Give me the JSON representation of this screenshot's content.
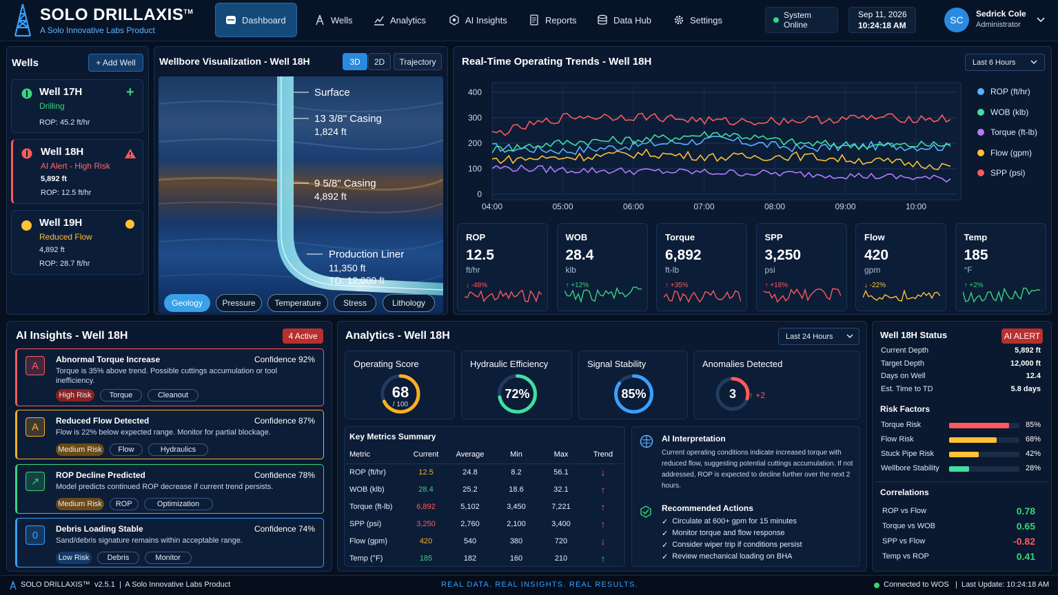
{
  "header": {
    "app_title": "SOLO DRILLAXIS",
    "trademark": "TM",
    "subtitle": "A Solo Innovative Labs Product",
    "nav": [
      {
        "label": "Dashboard",
        "icon": "dashboard-icon"
      },
      {
        "label": "Wells",
        "icon": "derrick-icon"
      },
      {
        "label": "Analytics",
        "icon": "analytics-icon"
      },
      {
        "label": "AI Insights",
        "icon": "ai-icon"
      },
      {
        "label": "Reports",
        "icon": "report-icon"
      },
      {
        "label": "Data Hub",
        "icon": "database-icon"
      },
      {
        "label": "Settings",
        "icon": "gear-icon"
      }
    ],
    "system_status": "System Online",
    "date": "Sep 11, 2026",
    "time": "10:24:18 AM",
    "user_initials": "SC",
    "user_name": "Sedrick Cole",
    "user_role": "Administrator"
  },
  "wells_panel": {
    "title": "Wells",
    "add_label": "+ Add Well",
    "wells": [
      {
        "name": "Well 17H",
        "status": "Drilling",
        "depth": "",
        "rop": "ROP: 45.2 ft/hr",
        "color": "#37d67a"
      },
      {
        "name": "Well 18H",
        "status": "AI Alert - High Risk",
        "depth": "5,892 ft",
        "rop": "ROP: 12.5 ft/hr",
        "color": "#ff5a5a"
      },
      {
        "name": "Well 19H",
        "status": "Reduced Flow",
        "depth": "4,892 ft",
        "rop": "ROP: 28.7 ft/hr",
        "color": "#ffc233"
      }
    ]
  },
  "wellbore": {
    "title": "Wellbore Visualization - Well 18H",
    "view_tabs": [
      "3D",
      "2D",
      "Trajectory"
    ],
    "labels": [
      {
        "name": "Surface",
        "value": ""
      },
      {
        "name": "13 3/8\" Casing",
        "value": "1,824 ft"
      },
      {
        "name": "9 5/8\" Casing",
        "value": "4,892 ft"
      },
      {
        "name": "Production Liner",
        "value": "11,350 ft"
      }
    ],
    "td": "TD: 12,000 ft",
    "layer_tabs": [
      "Geology",
      "Pressure",
      "Temperature",
      "Stress",
      "Lithology"
    ]
  },
  "trends": {
    "title": "Real-Time Operating Trends - Well 18H",
    "range": "Last 6 Hours"
  },
  "chart_data": {
    "type": "line",
    "x": [
      "04:00",
      "05:00",
      "06:00",
      "07:00",
      "08:00",
      "09:00",
      "10:00"
    ],
    "ylim": [
      0,
      400
    ],
    "yticks": [
      0,
      100,
      200,
      300,
      400
    ],
    "grid": true,
    "legend_position": "right",
    "series": [
      {
        "name": "ROP (ft/hr)",
        "color": "#58b4ff",
        "values": [
          185,
          170,
          195,
          215,
          180,
          190,
          185
        ]
      },
      {
        "name": "WOB (klb)",
        "color": "#3fe0a0",
        "values": [
          175,
          205,
          215,
          240,
          200,
          190,
          195
        ]
      },
      {
        "name": "Torque (ft-lb)",
        "color": "#b57cff",
        "values": [
          105,
          95,
          90,
          85,
          80,
          70,
          60
        ]
      },
      {
        "name": "Flow (gpm)",
        "color": "#ffc233",
        "values": [
          135,
          145,
          160,
          145,
          150,
          130,
          110
        ]
      },
      {
        "name": "SPP (psi)",
        "color": "#ff5a5a",
        "values": [
          235,
          305,
          305,
          285,
          290,
          300,
          295
        ]
      }
    ]
  },
  "kpis": [
    {
      "label": "ROP",
      "value": "12.5",
      "unit": "ft/hr",
      "change": "↓ -48%",
      "color": "#ff5a5a"
    },
    {
      "label": "WOB",
      "value": "28.4",
      "unit": "klb",
      "change": "↑ +12%",
      "color": "#37d67a"
    },
    {
      "label": "Torque",
      "value": "6,892",
      "unit": "ft-lb",
      "change": "↑ +35%",
      "color": "#ff5a5a"
    },
    {
      "label": "SPP",
      "value": "3,250",
      "unit": "psi",
      "change": "↑ +18%",
      "color": "#ff5a5a"
    },
    {
      "label": "Flow",
      "value": "420",
      "unit": "gpm",
      "change": "↓ -22%",
      "color": "#ffc233"
    },
    {
      "label": "Temp",
      "value": "185",
      "unit": "°F",
      "change": "↑ +2%",
      "color": "#37d67a"
    }
  ],
  "insights": {
    "title": "AI Insights - Well 18H",
    "badge": "4 Active",
    "items": [
      {
        "icon_letter": "A",
        "title": "Abnormal Torque Increase",
        "confidence": "Confidence 92%",
        "desc": "Torque is 35% above trend. Possible cuttings accumulation or tool inefficiency.",
        "tags": [
          "High Risk",
          "Torque",
          "Cleanout"
        ],
        "color": "#ff5a5a"
      },
      {
        "icon_letter": "A",
        "title": "Reduced Flow Detected",
        "confidence": "Confidence 87%",
        "desc": "Flow is 22% below expected range. Monitor for partial blockage.",
        "tags": [
          "Medium Risk",
          "Flow",
          "Hydraulics"
        ],
        "color": "#ffb020"
      },
      {
        "icon_letter": "↗",
        "title": "ROP Decline Predicted",
        "confidence": "Confidence 78%",
        "desc": "Model predicts continued ROP decrease if current trend persists.",
        "tags": [
          "Medium Risk",
          "ROP",
          "Optimization"
        ],
        "color": "#37d67a"
      },
      {
        "icon_letter": "0",
        "title": "Debris Loading Stable",
        "confidence": "Confidence 74%",
        "desc": "Sand/debris signature remains within acceptable range.",
        "tags": [
          "Low Risk",
          "Debris",
          "Monitor"
        ],
        "color": "#3aa0ff"
      }
    ]
  },
  "analytics": {
    "title": "Analytics - Well 18H",
    "range": "Last 24 Hours",
    "cards": [
      {
        "label": "Operating Score",
        "value": "68",
        "sub": "/ 100",
        "fraction": 0.68,
        "color": "#ffb020"
      },
      {
        "label": "Hydraulic Efficiency",
        "value": "72%",
        "fraction": 0.72,
        "color": "#3fe0a0"
      },
      {
        "label": "Signal Stability",
        "value": "85%",
        "fraction": 0.85,
        "color": "#3aa0ff"
      },
      {
        "label": "Anomalies Detected",
        "value": "3",
        "delta": "↑ +2",
        "fraction": 0.3,
        "color": "#ff5a5a"
      }
    ],
    "metrics_title": "Key Metrics Summary",
    "metrics_headers": [
      "Metric",
      "Current",
      "Average",
      "Min",
      "Max",
      "Trend"
    ],
    "metrics_rows": [
      {
        "metric": "ROP (ft/hr)",
        "current": "12.5",
        "avg": "24.8",
        "min": "8.2",
        "max": "56.1",
        "trend": "↓",
        "current_color": "#ffb020",
        "trend_color": "#ff5a5a"
      },
      {
        "metric": "WOB (klb)",
        "current": "28.4",
        "avg": "25.2",
        "min": "18.6",
        "max": "32.1",
        "trend": "↑",
        "current_color": "#37d67a",
        "trend_color": "#ff5a5a"
      },
      {
        "metric": "Torque (ft-lb)",
        "current": "6,892",
        "avg": "5,102",
        "min": "3,450",
        "max": "7,221",
        "trend": "↑",
        "current_color": "#ff5a5a",
        "trend_color": "#ff5a5a"
      },
      {
        "metric": "SPP (psi)",
        "current": "3,250",
        "avg": "2,760",
        "min": "2,100",
        "max": "3,400",
        "trend": "↑",
        "current_color": "#ff5a5a",
        "trend_color": "#ff5a5a"
      },
      {
        "metric": "Flow (gpm)",
        "current": "420",
        "avg": "540",
        "min": "380",
        "max": "720",
        "trend": "↓",
        "current_color": "#ffb020",
        "trend_color": "#ff5a5a"
      },
      {
        "metric": "Temp (°F)",
        "current": "185",
        "avg": "182",
        "min": "160",
        "max": "210",
        "trend": "↑",
        "current_color": "#37d67a",
        "trend_color": "#37d67a"
      }
    ],
    "interpretation_title": "AI Interpretation",
    "interpretation": "Current operating conditions indicate increased torque with reduced flow, suggesting potential cuttings accumulation. If not addressed, ROP is expected to decline further over the next 2 hours.",
    "actions_title": "Recommended Actions",
    "actions": [
      "Circulate at 600+ gpm for 15 minutes",
      "Monitor torque and flow response",
      "Consider wiper trip if conditions persist",
      "Review mechanical loading on BHA"
    ]
  },
  "status_panel": {
    "title": "Well 18H Status",
    "badge": "AI ALERT",
    "stats": [
      {
        "label": "Current Depth",
        "value": "5,892 ft"
      },
      {
        "label": "Target Depth",
        "value": "12,000 ft"
      },
      {
        "label": "Days on Well",
        "value": "12.4"
      },
      {
        "label": "Est. Time to TD",
        "value": "5.8 days"
      }
    ],
    "risk_title": "Risk Factors",
    "risks": [
      {
        "label": "Torque Risk",
        "value": "85%",
        "fraction": 0.85,
        "color": "#ff5a5a"
      },
      {
        "label": "Flow Risk",
        "value": "68%",
        "fraction": 0.68,
        "color": "#ffc233"
      },
      {
        "label": "Stuck Pipe Risk",
        "value": "42%",
        "fraction": 0.42,
        "color": "#ffc233"
      },
      {
        "label": "Wellbore Stability",
        "value": "28%",
        "fraction": 0.28,
        "color": "#3fe0a0"
      }
    ],
    "corr_title": "Correlations",
    "correlations": [
      {
        "label": "ROP vs Flow",
        "value": "0.78",
        "color": "#37d67a"
      },
      {
        "label": "Torque vs WOB",
        "value": "0.65",
        "color": "#37d67a"
      },
      {
        "label": "SPP vs Flow",
        "value": "-0.82",
        "color": "#ff5a5a"
      },
      {
        "label": "Temp vs ROP",
        "value": "0.41",
        "color": "#37d67a"
      }
    ]
  },
  "footer": {
    "left": "SOLO DRILLAXIS™  v2.5.1  |  A Solo Innovative Labs Product",
    "center": "REAL DATA. REAL INSIGHTS. REAL RESULTS.",
    "connection": "Connected to WOS",
    "last_update": "Last Update: 10:24:18 AM"
  }
}
